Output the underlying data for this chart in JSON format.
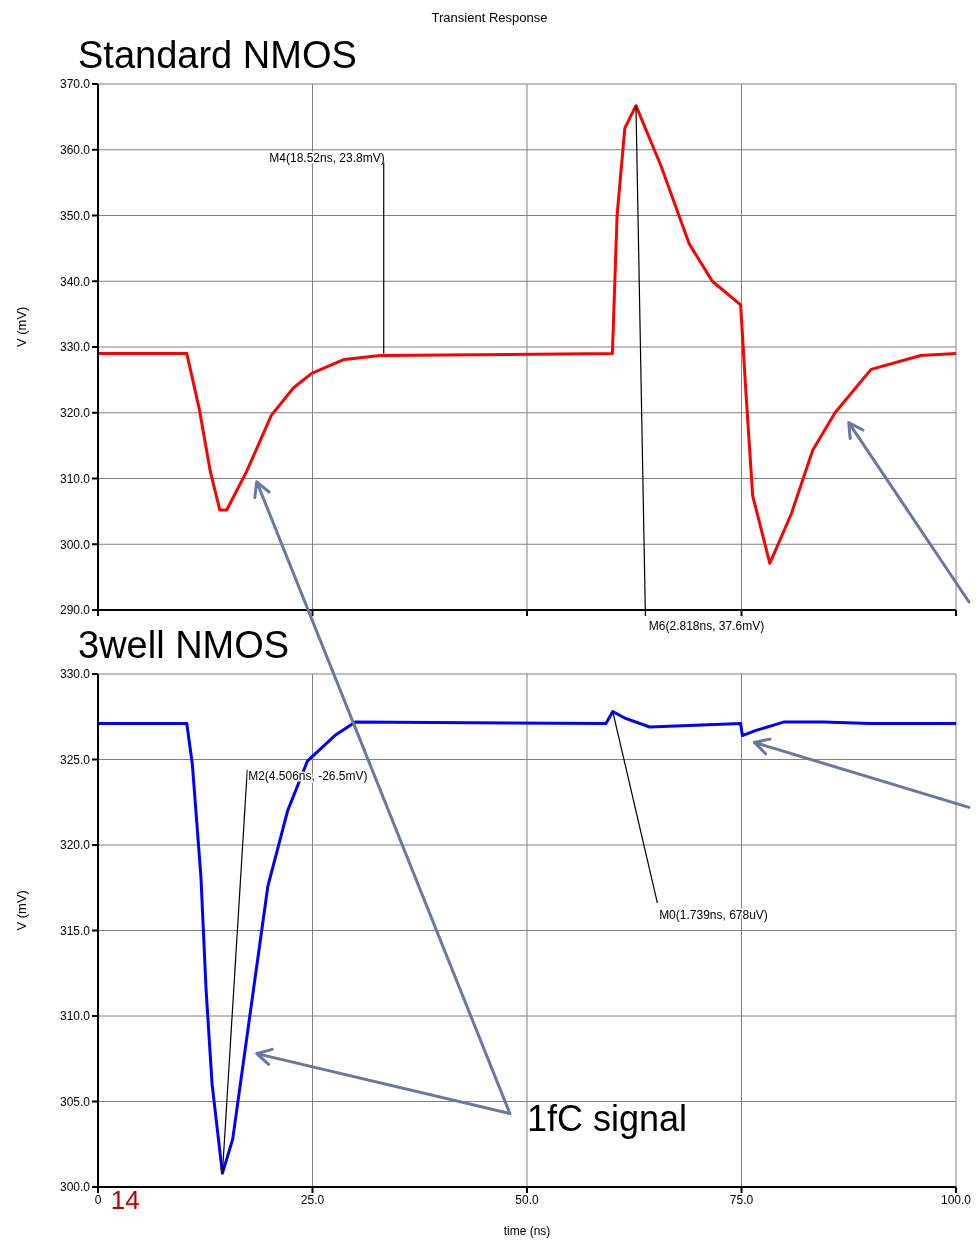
{
  "chart_data": [
    {
      "type": "line",
      "title": "Transient Response",
      "subtitle": "Standard NMOS",
      "ylabel": "V (mV)",
      "x": [
        0,
        10.35,
        11.8,
        13.1,
        14.2,
        15.0,
        17.3,
        20.2,
        22.8,
        24.9,
        28.7,
        32.9,
        59.95,
        60.5,
        61.4,
        62.7,
        65.6,
        68.9,
        71.6,
        74.9,
        75.5,
        76.3,
        78.3,
        80.8,
        83.3,
        85.9,
        90.1,
        95.9,
        100
      ],
      "series": [
        {
          "color": "#ff0000",
          "values": [
            329,
            329,
            320.6,
            311,
            305.2,
            305.2,
            311,
            319.6,
            323.8,
            326,
            328.1,
            328.7,
            329,
            350,
            363.3,
            366.7,
            357.6,
            345.7,
            340,
            336.4,
            323.4,
            307.4,
            297.1,
            304.6,
            314.3,
            320,
            326.6,
            328.7,
            329
          ]
        }
      ],
      "xlim": [
        0,
        100
      ],
      "xticks": [
        0,
        25,
        50,
        75,
        100
      ],
      "ylim": [
        290,
        370
      ],
      "yticks": [
        {
          "value": 290,
          "label": "290.0"
        },
        {
          "value": 300,
          "label": "300.0"
        },
        {
          "value": 310,
          "label": "310.0"
        },
        {
          "value": 320,
          "label": "320.0"
        },
        {
          "value": 330,
          "label": "330.0"
        },
        {
          "value": 340,
          "label": "340.0"
        },
        {
          "value": 350,
          "label": "350.0"
        },
        {
          "value": 360,
          "label": "360.0"
        },
        {
          "value": 370,
          "label": "370.0"
        }
      ],
      "tick_labels": "y",
      "grid": true,
      "legend": false,
      "annotations": [
        {
          "text": "M4(18.52ns, 23.8mV)",
          "x": 33.3,
          "y": 329
        },
        {
          "text": "M6(2.818ns, 37.6mV)",
          "x": 62.7,
          "y": 366.7
        }
      ]
    },
    {
      "type": "line",
      "subtitle": "3well NMOS",
      "xlabel": "time (ns)",
      "ylabel": "V (mV)",
      "x": [
        0,
        10.35,
        11.0,
        12.0,
        12.6,
        13.3,
        14.5,
        15.7,
        17.5,
        19.8,
        22.1,
        24.4,
        27.6,
        30,
        59.2,
        60,
        61.5,
        64.3,
        74.9,
        75.1,
        76.7,
        80,
        84.5,
        90,
        100
      ],
      "series": [
        {
          "color": "#0000ff",
          "values": [
            327.1,
            327.1,
            324.7,
            318.1,
            311.5,
            306,
            300.8,
            302.8,
            309.3,
            317.6,
            322,
            324.9,
            326.4,
            327.2,
            327.1,
            327.8,
            327.4,
            326.9,
            327.1,
            326.4,
            326.7,
            327.2,
            327.2,
            327.1,
            327.1
          ]
        }
      ],
      "xlim": [
        0,
        100
      ],
      "xticks": [
        0,
        {
          "value": 25,
          "label": "25.0"
        },
        {
          "value": 50,
          "label": "50.0"
        },
        {
          "value": 75,
          "label": "75.0"
        },
        {
          "value": 100,
          "label": "100.0"
        }
      ],
      "ylim": [
        300,
        330
      ],
      "yticks": [
        {
          "value": 300,
          "label": "300.0"
        },
        {
          "value": 305,
          "label": "305.0"
        },
        {
          "value": 310,
          "label": "310.0"
        },
        {
          "value": 315,
          "label": "315.0"
        },
        {
          "value": 320,
          "label": "320.0"
        },
        {
          "value": 325,
          "label": "325.0"
        },
        {
          "value": 330,
          "label": "330.0"
        }
      ],
      "grid": true,
      "legend": false,
      "annotations": [
        {
          "text": "M2(4.506ns, -26.5mV)",
          "x": 14.5,
          "y": 300.8
        },
        {
          "text": "M0(1.739ns, 678uV)",
          "x": 60,
          "y": 327.8
        },
        "1fC signal",
        "14"
      ]
    }
  ]
}
